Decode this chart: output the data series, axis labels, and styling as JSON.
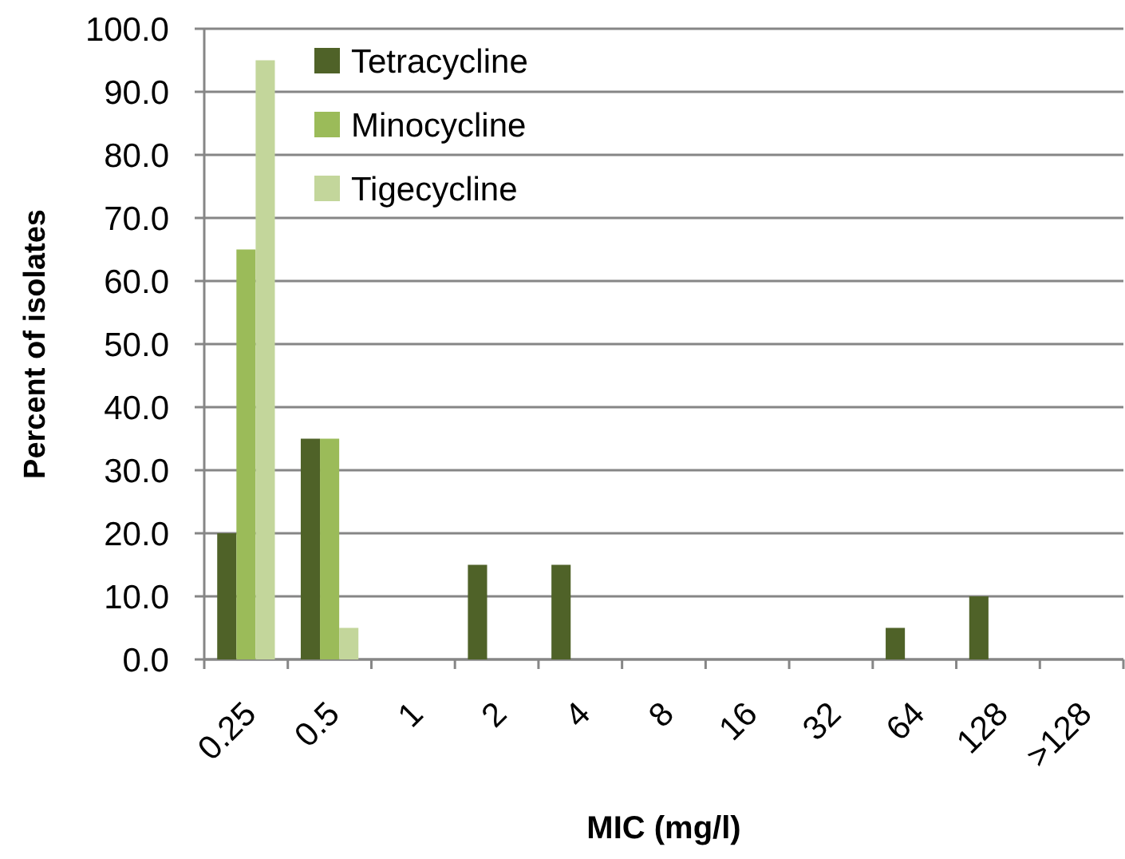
{
  "chart_data": {
    "type": "bar",
    "xlabel": "MIC (mg/l)",
    "ylabel": "Percent of isolates",
    "categories": [
      "0.25",
      "0.5",
      "1",
      "2",
      "4",
      "8",
      "16",
      "32",
      "64",
      "128",
      ">128"
    ],
    "series": [
      {
        "name": "Tetracycline",
        "color": "#4f6228",
        "values": [
          20,
          35,
          0,
          15,
          15,
          0,
          0,
          0,
          5,
          10,
          0
        ]
      },
      {
        "name": "Minocycline",
        "color": "#9bbb59",
        "values": [
          65,
          35,
          0,
          0,
          0,
          0,
          0,
          0,
          0,
          0,
          0
        ]
      },
      {
        "name": "Tigecycline",
        "color": "#c3d69b",
        "values": [
          95,
          5,
          0,
          0,
          0,
          0,
          0,
          0,
          0,
          0,
          0
        ]
      }
    ],
    "ylim": [
      0,
      100
    ],
    "yticks": [
      {
        "value": 0,
        "label": "0.0"
      },
      {
        "value": 10,
        "label": "10.0"
      },
      {
        "value": 20,
        "label": "20.0"
      },
      {
        "value": 30,
        "label": "30.0"
      },
      {
        "value": 40,
        "label": "40.0"
      },
      {
        "value": 50,
        "label": "50.0"
      },
      {
        "value": 60,
        "label": "60.0"
      },
      {
        "value": 70,
        "label": "70.0"
      },
      {
        "value": 80,
        "label": "80.0"
      },
      {
        "value": 90,
        "label": "90.0"
      },
      {
        "value": 100,
        "label": "100.0"
      }
    ],
    "grid": "y",
    "legend": "top left"
  }
}
